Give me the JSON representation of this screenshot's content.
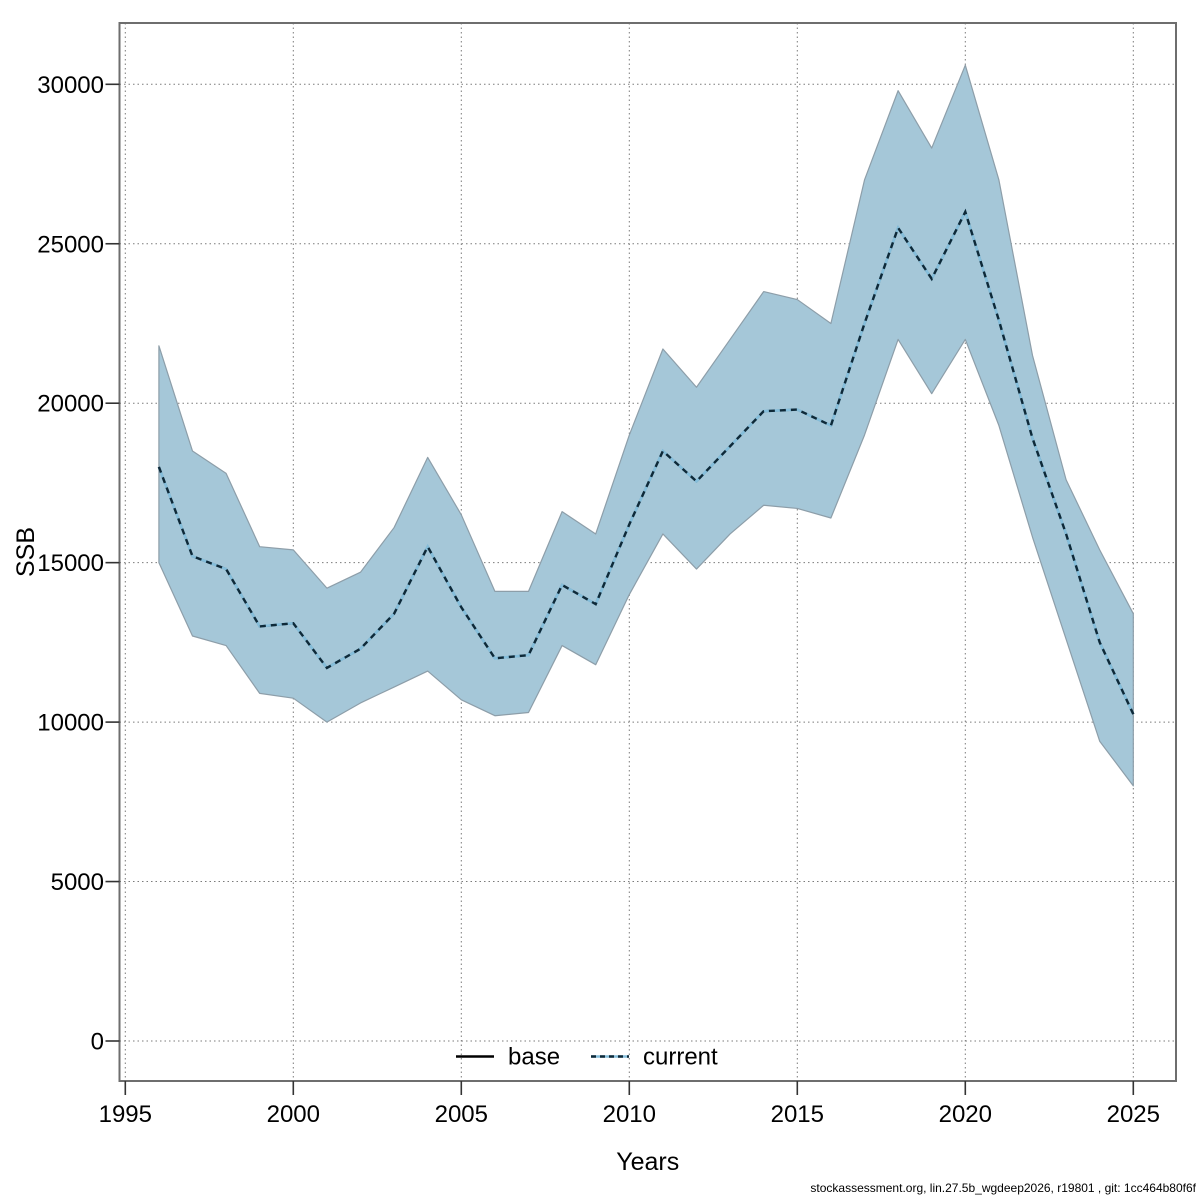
{
  "chart_data": {
    "type": "line",
    "title": "",
    "xlabel": "Years",
    "ylabel": "SSB",
    "footer": "stockassessment.org, lin.27.5b_wgdeep2026, r19801 , git: 1cc464b80f6f",
    "x_ticks": [
      1995,
      2000,
      2005,
      2010,
      2015,
      2020,
      2025
    ],
    "y_ticks": [
      0,
      5000,
      10000,
      15000,
      20000,
      25000,
      30000
    ],
    "xlim": [
      1994.8,
      2026.3
    ],
    "ylim": [
      -1250,
      31900
    ],
    "grid": "dotted",
    "legend_position": "bottom-center-inside",
    "legend": [
      {
        "label": "base",
        "style": "solid",
        "color": "#000000"
      },
      {
        "label": "current",
        "style": "dashed",
        "color": "#0e2938",
        "underlay_color": "#85bedb"
      }
    ],
    "band_color": "#a5c7d8",
    "band_edge_color": "#8d9ea9",
    "x": [
      1996,
      1997,
      1998,
      1999,
      2000,
      2001,
      2002,
      2003,
      2004,
      2005,
      2006,
      2007,
      2008,
      2009,
      2010,
      2011,
      2012,
      2013,
      2014,
      2015,
      2016,
      2017,
      2018,
      2019,
      2020,
      2021,
      2022,
      2023,
      2024,
      2025
    ],
    "series": [
      {
        "name": "current",
        "values": [
          18000,
          15200,
          14800,
          13000,
          13100,
          11700,
          12300,
          13400,
          15500,
          13600,
          12000,
          12100,
          14300,
          13700,
          16200,
          18500,
          17550,
          18650,
          19750,
          19800,
          19300,
          22500,
          25500,
          23900,
          26000,
          22600,
          18900,
          15900,
          12500,
          10250
        ],
        "lower": [
          15000,
          12700,
          12400,
          10900,
          10750,
          10000,
          10600,
          11100,
          11600,
          10700,
          10200,
          10300,
          12400,
          11800,
          14000,
          15900,
          14800,
          15900,
          16800,
          16700,
          16400,
          19000,
          22000,
          20300,
          22000,
          19300,
          15800,
          12600,
          9400,
          8000
        ],
        "upper": [
          21800,
          18500,
          17800,
          15500,
          15400,
          14200,
          14700,
          16100,
          18300,
          16500,
          14100,
          14100,
          16600,
          15900,
          19000,
          21700,
          20500,
          22000,
          23500,
          23250,
          22500,
          27000,
          29800,
          28000,
          30600,
          27000,
          21500,
          17600,
          15400,
          13400
        ]
      },
      {
        "name": "base",
        "values": [
          18000,
          15200,
          14800,
          13000,
          13100,
          11700,
          12300,
          13400,
          15500,
          13600,
          12000,
          12100,
          14300,
          13700,
          16200,
          18500,
          17550,
          18650,
          19750,
          19800,
          19300,
          22500,
          25500,
          23900,
          26000,
          22600,
          18900,
          15900,
          12500,
          10250
        ],
        "note_visible": "coincides with current line"
      }
    ]
  }
}
